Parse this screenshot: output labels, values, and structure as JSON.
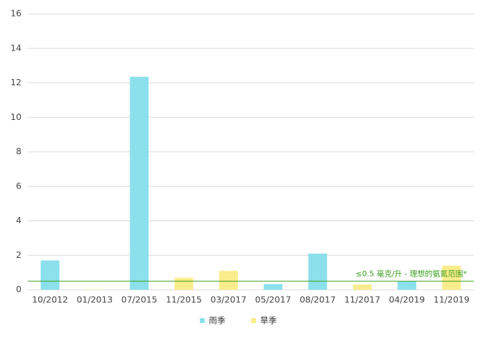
{
  "chart_data": {
    "type": "bar",
    "categories": [
      "10/2012",
      "01/2013",
      "07/2015",
      "11/2015",
      "03/2017",
      "05/2017",
      "08/2017",
      "11/2017",
      "04/2019",
      "11/2019"
    ],
    "series": [
      {
        "name": "雨季",
        "color": "#8be0ec",
        "values": [
          1.7,
          null,
          12.35,
          null,
          null,
          0.33,
          2.1,
          null,
          0.5,
          null
        ]
      },
      {
        "name": "旱季",
        "color": "#fbec8c",
        "values": [
          null,
          0.02,
          null,
          0.7,
          1.1,
          null,
          null,
          0.3,
          null,
          1.4
        ]
      }
    ],
    "ylim": [
      0,
      16
    ],
    "yticks": [
      0,
      2,
      4,
      6,
      8,
      10,
      12,
      14,
      16
    ],
    "grid": true,
    "reference_line": {
      "value": 0.5,
      "label": "≤0.5 毫克/升 - 理想的氨氮范围*",
      "color": "#3a9e1c"
    },
    "legend": "bottom"
  }
}
